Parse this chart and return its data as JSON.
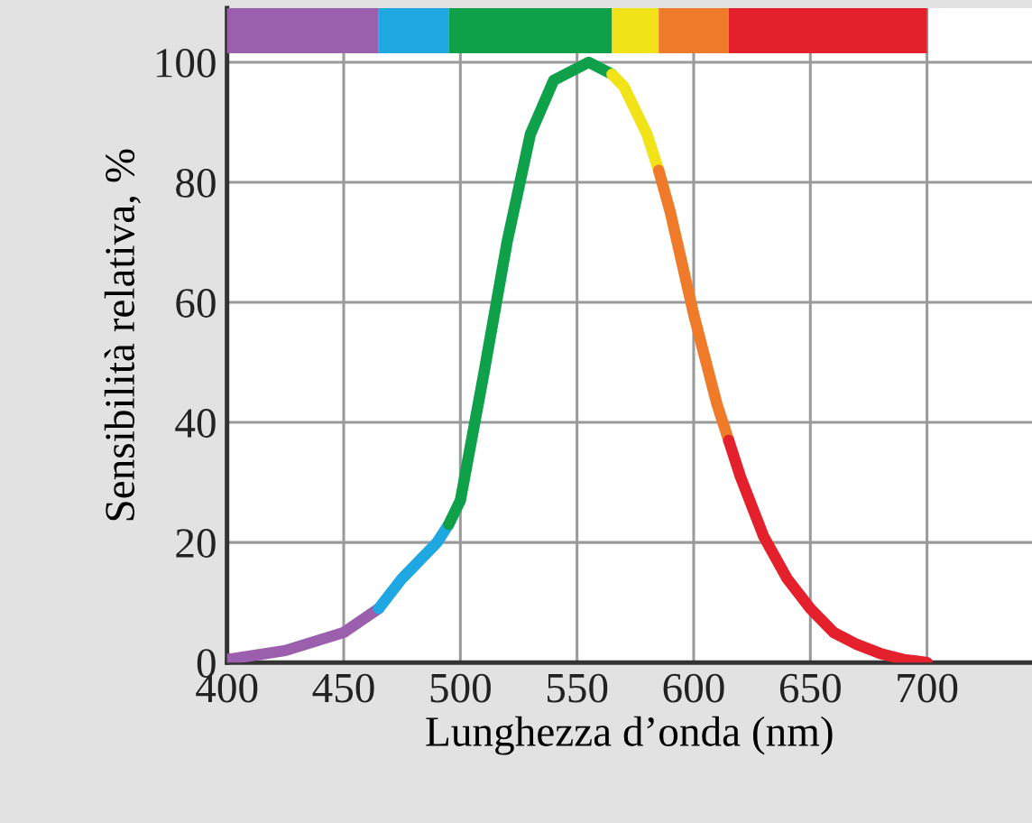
{
  "chart_data": {
    "type": "line",
    "xlabel": "Lunghezza d’onda (nm)",
    "ylabel": "Sensibilità relativa, %",
    "xlim": [
      400,
      745
    ],
    "ylim": [
      0,
      109
    ],
    "xticks": [
      400,
      450,
      500,
      550,
      600,
      650,
      700
    ],
    "yticks": [
      0,
      20,
      40,
      60,
      80,
      100
    ],
    "grid": true,
    "marker": "none",
    "line_style": "solid",
    "series": [
      {
        "color": "#9b5fae",
        "x": [
          400,
          425,
          450,
          465
        ],
        "values": [
          0.5,
          2,
          5,
          9
        ]
      },
      {
        "color": "#1ea7e0",
        "x": [
          465,
          475,
          490,
          495
        ],
        "values": [
          9,
          14,
          20,
          23
        ]
      },
      {
        "color": "#0fa04a",
        "x": [
          495,
          500,
          510,
          520,
          530,
          540,
          555,
          565
        ],
        "values": [
          23,
          27,
          48,
          70,
          88,
          97,
          100,
          98
        ]
      },
      {
        "color": "#f2e318",
        "x": [
          565,
          570,
          580,
          585
        ],
        "values": [
          98,
          96,
          88,
          82
        ]
      },
      {
        "color": "#ef7a2a",
        "x": [
          585,
          590,
          600,
          610,
          615
        ],
        "values": [
          82,
          75,
          58,
          43,
          37
        ]
      },
      {
        "color": "#e3202b",
        "x": [
          615,
          620,
          630,
          640,
          650,
          660,
          670,
          680,
          690,
          700
        ],
        "values": [
          37,
          31,
          21,
          14,
          9,
          5,
          3,
          1.5,
          0.5,
          0
        ]
      }
    ]
  }
}
